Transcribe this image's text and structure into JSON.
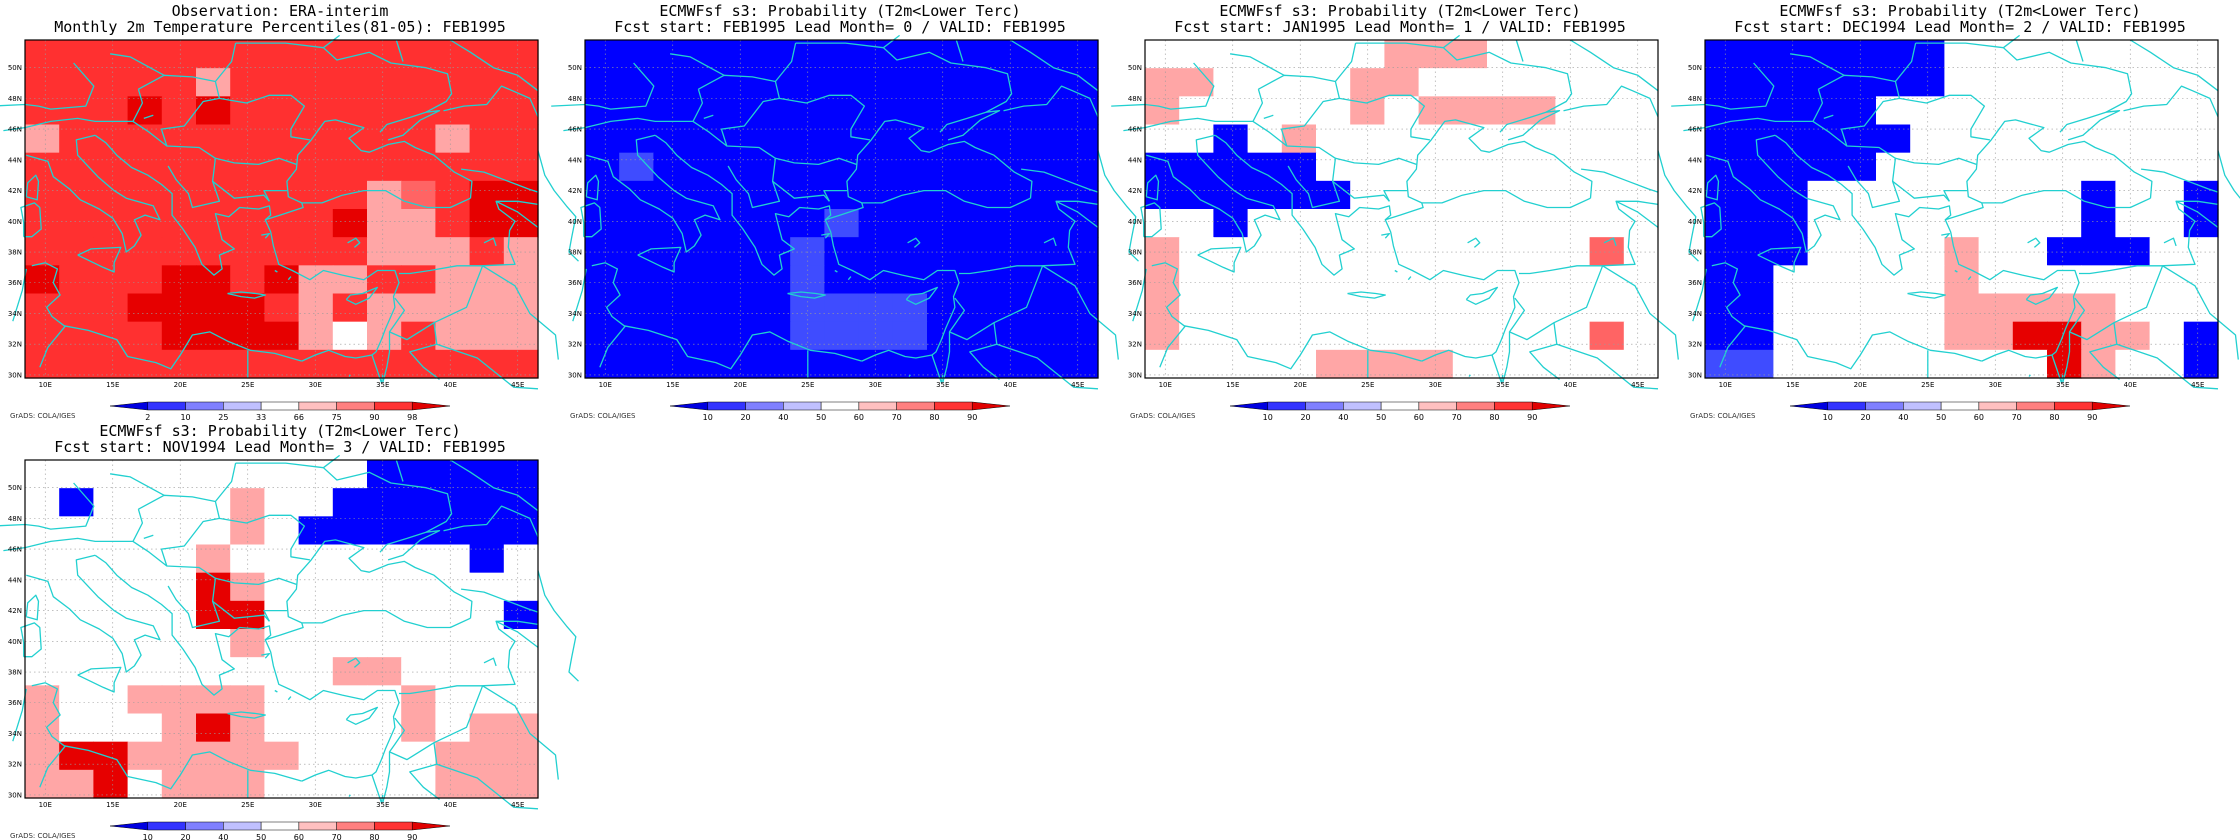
{
  "colors": {
    "blue_dark": "#0000ff",
    "blue_mid": "#3f4cff",
    "blue_light": "#7f86ff",
    "red_light": "#ffa6a6",
    "red_mid": "#ff6464",
    "red_strong": "#ff3030",
    "red_dark": "#e60000",
    "coast": "#22d0d0"
  },
  "map": {
    "lon_ticks": [
      "10E",
      "15E",
      "20E",
      "25E",
      "30E",
      "35E",
      "40E",
      "45E"
    ],
    "lat_ticks": [
      "50N",
      "48N",
      "46N",
      "44N",
      "42N",
      "40N",
      "38N",
      "36N",
      "34N",
      "32N",
      "30N"
    ]
  },
  "credit": "GrADS: COLA/IGES",
  "panels": [
    {
      "title1": "Observation: ERA-interim",
      "title2": "Monthly 2m Temperature Percentiles(81-05): FEB1995",
      "colorbar": {
        "labels": [
          "2",
          "10",
          "25",
          "33",
          "66",
          "75",
          "90",
          "98"
        ],
        "colors": [
          "#0000e0",
          "#3333ff",
          "#8080ff",
          "#c0c0ff",
          "#ffffff",
          "#ffc0c0",
          "#ff8080",
          "#ff3333",
          "#e00000"
        ]
      },
      "grid": [
        "rrrrrrrrrrrrrrr",
        "rrrrrLrrrrrrrrr",
        "rrrRrRrrrrrrrrr",
        "LrrrrrrrrrrrLrr",
        "rrrrrrrrrrrrrrr",
        "rrrrrrrrrrLPrRR",
        "rrrrrrrrrRLLrRR",
        "rrrrrrrrrrLLLrL",
        "RrrrRRrRLLrrLLL",
        "rrrRRRRrLrLLLLL",
        "rrrrRRRRLWLrLLL",
        "rrrrrrrrrrrrrrr"
      ]
    },
    {
      "title1": "ECMWFsf s3: Probability (T2m<Lower Terc)",
      "title2": "Fcst start: FEB1995  Lead Month= 0 / VALID: FEB1995",
      "colorbar": {
        "labels": [
          "10",
          "20",
          "40",
          "50",
          "60",
          "70",
          "80",
          "90"
        ],
        "colors": [
          "#0000e0",
          "#3333ff",
          "#8080ff",
          "#c0c0ff",
          "#ffffff",
          "#ffc0c0",
          "#ff8080",
          "#ff3333",
          "#e00000"
        ]
      },
      "grid": [
        "BBBBBBBBBBBBBBB",
        "BBBBBBBBBBBBBBB",
        "BBBBBBBBBBBBBBB",
        "BBBBBBBBBBBBBBB",
        "BbBBBBBBBBBBBBB",
        "BBBBBBBBBBBBBBB",
        "BBBBBBBbBBBBBBB",
        "BBBBBBbBBBBBBBB",
        "BBBBBBbBBBBBBBB",
        "BBBBBBbbbbBBBBB",
        "BBBBBBbbbbBBBBB",
        "BBBBBBBBBBBBBBB"
      ]
    },
    {
      "title1": "ECMWFsf s3: Probability (T2m<Lower Terc)",
      "title2": "Fcst start: JAN1995  Lead Month= 1 / VALID: FEB1995",
      "colorbar": {
        "labels": [
          "10",
          "20",
          "40",
          "50",
          "60",
          "70",
          "80",
          "90"
        ],
        "colors": [
          "#0000e0",
          "#3333ff",
          "#8080ff",
          "#c0c0ff",
          "#ffffff",
          "#ffc0c0",
          "#ff8080",
          "#ff3333",
          "#e00000"
        ]
      },
      "grid": [
        "wwwwwwwLLLwwwww",
        "LLwwwwLLwwwwwww",
        "LwwwwwLwLLLLwww",
        "wwBwLwwwwwwwwww",
        "BBBBBwwwwwwwwww",
        "BBBBBBwwwwwwwww",
        "wwBwwwwwwwwwwww",
        "LwwwwwwwwwwwwAw",
        "Lwwwwwwwwwwwwww",
        "Lwwwwwwwwwwwwww",
        "LwwwwwwwwwwwwAw",
        "wwwwwLLLLwwwwww"
      ]
    },
    {
      "title1": "ECMWFsf s3: Probability (T2m<Lower Terc)",
      "title2": "Fcst start: DEC1994  Lead Month= 2 / VALID: FEB1995",
      "colorbar": {
        "labels": [
          "10",
          "20",
          "40",
          "50",
          "60",
          "70",
          "80",
          "90"
        ],
        "colors": [
          "#0000e0",
          "#3333ff",
          "#8080ff",
          "#c0c0ff",
          "#ffffff",
          "#ffc0c0",
          "#ff8080",
          "#ff3333",
          "#e00000"
        ]
      },
      "grid": [
        "BBBBBBBwwwwwwww",
        "BBBBBBBwwwwwwww",
        "BBBBBwwwwwwwwww",
        "BBBBBBwwwwwwwww",
        "BBBBBwwwwwwwwww",
        "BBBwwwwwwwwBwwB",
        "BBBwwwwwwwwBwwB",
        "BBBwwwwLwwBBBww",
        "BBwwwwwLwwwwwww",
        "BBwwwwwLLLLLwww",
        "BBwwwwwLLRRLLwB",
        "bbwwwwwwwwRLwwB"
      ]
    },
    {
      "title1": "ECMWFsf s3: Probability (T2m<Lower Terc)",
      "title2": "Fcst start: NOV1994  Lead Month= 3 / VALID: FEB1995",
      "colorbar": {
        "labels": [
          "10",
          "20",
          "40",
          "50",
          "60",
          "70",
          "80",
          "90"
        ],
        "colors": [
          "#0000e0",
          "#3333ff",
          "#8080ff",
          "#c0c0ff",
          "#ffffff",
          "#ffc0c0",
          "#ff8080",
          "#ff3333",
          "#e00000"
        ]
      },
      "grid": [
        "wwwwwwwwwwBBBBB",
        "wBwwwwLwwBBBBBB",
        "wwwwwwLwBBBBBBB",
        "wwwwwLwwwwwwwBw",
        "wwwwwRLwwwwwwww",
        "wwwwwRRwwwwwwwB",
        "wwwwwwLwwwwwwww",
        "wwwwwwwwwLLwwww",
        "LwwLLLLwwwwLwww",
        "LwwwLRLwwwwLwLL",
        "LRRLLLLLwwwwLLL",
        "LLRwLLLwwwwwLLL"
      ]
    }
  ]
}
